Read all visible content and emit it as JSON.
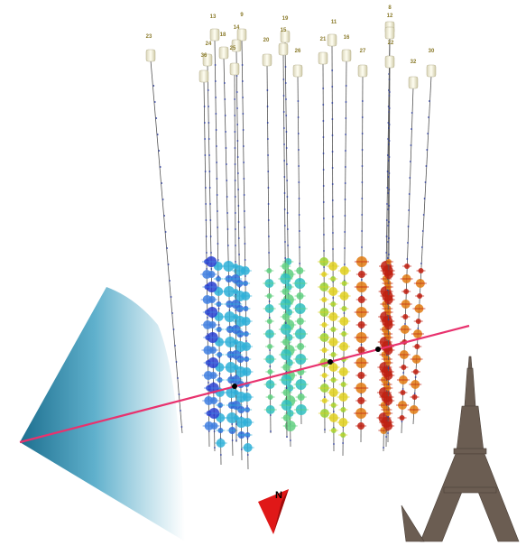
{
  "strings": {
    "labels": [
      "23",
      "13",
      "9",
      "24",
      "18",
      "14",
      "36",
      "25",
      "20",
      "19",
      "15",
      "26",
      "21",
      "11",
      "16",
      "27",
      "8",
      "12",
      "22",
      "32",
      "30"
    ]
  },
  "compass": {
    "label": "N"
  }
}
